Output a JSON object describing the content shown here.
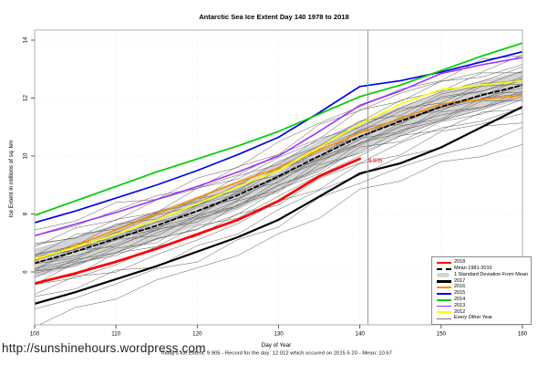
{
  "footer": {
    "link": "http://sunshinehours.wordpress.com",
    "caption": "Today's Ice Extent: 9.905  - Record for the day: 12.012 which occured on 2015 5 20  - Mean: 10.67"
  },
  "chart_data": {
    "type": "line",
    "title": "Antarctic Sea Ice Extent Day 140 1978 to 2018",
    "xlabel": "Day of Year",
    "ylabel": "Ice Extent in millions of sq. km",
    "xlim": [
      100,
      160
    ],
    "ylim": [
      4.2,
      14.35
    ],
    "xticks": [
      100,
      110,
      120,
      130,
      140,
      150,
      160
    ],
    "yticks": [
      6,
      8,
      10,
      12,
      14
    ],
    "grid": "light-dotted",
    "legend_position": "bottom-right",
    "x": [
      100,
      105,
      110,
      115,
      120,
      125,
      130,
      135,
      140,
      145,
      150,
      155,
      160
    ],
    "series": [
      {
        "name": "2016",
        "color": "#ff8c00",
        "width": 1.6,
        "values": [
          6.4,
          6.9,
          7.45,
          8.0,
          8.55,
          9.1,
          9.6,
          10.2,
          10.8,
          11.3,
          11.8,
          11.95,
          12.1
        ]
      },
      {
        "name": "2012",
        "color": "#ffff00",
        "width": 1.6,
        "values": [
          6.45,
          6.85,
          7.3,
          7.8,
          8.35,
          8.95,
          9.5,
          10.3,
          11.1,
          11.8,
          12.3,
          12.45,
          12.6
        ]
      },
      {
        "name": "2013",
        "color": "#9b30ff",
        "width": 1.6,
        "values": [
          7.25,
          7.65,
          8.05,
          8.5,
          8.95,
          9.45,
          10.0,
          10.85,
          11.75,
          12.25,
          12.85,
          13.15,
          13.4
        ]
      },
      {
        "name": "2015",
        "color": "#0000ee",
        "width": 1.7,
        "values": [
          7.7,
          8.1,
          8.55,
          9.0,
          9.5,
          10.05,
          10.65,
          11.5,
          12.4,
          12.6,
          12.9,
          13.25,
          13.6
        ]
      },
      {
        "name": "2014",
        "color": "#00cc00",
        "width": 1.7,
        "values": [
          7.95,
          8.45,
          8.95,
          9.45,
          9.9,
          10.35,
          10.85,
          11.45,
          12.05,
          12.45,
          12.95,
          13.45,
          13.9
        ]
      },
      {
        "name": "Mean 1981-2010",
        "color": "#000000",
        "width": 1.8,
        "dash": "4.5,3",
        "values": [
          6.3,
          6.7,
          7.15,
          7.6,
          8.1,
          8.65,
          9.3,
          10.0,
          10.67,
          11.2,
          11.7,
          12.1,
          12.45
        ]
      },
      {
        "name": "2017",
        "color": "#000000",
        "width": 2.2,
        "values": [
          4.9,
          5.3,
          5.75,
          6.2,
          6.7,
          7.2,
          7.8,
          8.6,
          9.4,
          9.75,
          10.3,
          11.0,
          11.7
        ]
      },
      {
        "name": "2018",
        "color": "#ff0000",
        "width": 2.8,
        "values": [
          5.6,
          5.95,
          6.35,
          6.8,
          7.3,
          7.8,
          8.45,
          9.3,
          9.905
        ]
      }
    ],
    "std_band": {
      "label": "1 Standard Deviation From Mean",
      "color": "#d4d4d4",
      "halfwidth": 0.5,
      "mean_ref": "Mean 1981-2010"
    },
    "background_years": {
      "label": "Every Other Year",
      "color": "#5a5a5a",
      "width": 0.5,
      "offsets": [
        -2.0,
        -1.6,
        -1.25,
        -1.0,
        -0.82,
        -0.66,
        -0.55,
        -0.47,
        -0.4,
        -0.34,
        -0.28,
        -0.22,
        -0.16,
        -0.1,
        -0.05,
        0.0,
        0.05,
        0.11,
        0.17,
        0.24,
        0.31,
        0.39,
        0.48,
        0.6,
        0.75,
        0.92,
        1.08
      ]
    },
    "marker": {
      "day": 141,
      "color": "#8c8c8c"
    },
    "annotation": {
      "text": "9.905",
      "day": 141.9,
      "value": 9.84,
      "color": "#ff0000"
    },
    "stats": {
      "todays_ice_extent": 9.905,
      "record_for_day": 12.012,
      "record_date": "2015 5 20",
      "mean": 10.67
    },
    "legend": [
      {
        "label": "2018",
        "swatch": "thick",
        "color": "#ff0000"
      },
      {
        "label": "Mean 1981-2010",
        "swatch": "dashed",
        "color": "#000000"
      },
      {
        "label": "1 Standard Deviation From Mean",
        "swatch": "band",
        "color": "#d4d4d4"
      },
      {
        "label": "2017",
        "swatch": "thick",
        "color": "#000000"
      },
      {
        "label": "2016",
        "swatch": "line",
        "color": "#ff8c00"
      },
      {
        "label": "2015",
        "swatch": "line",
        "color": "#0000ee"
      },
      {
        "label": "2014",
        "swatch": "line",
        "color": "#00cc00"
      },
      {
        "label": "2013",
        "swatch": "line",
        "color": "#9b30ff"
      },
      {
        "label": "2012",
        "swatch": "line",
        "color": "#ffff00"
      },
      {
        "label": "Every Other Year",
        "swatch": "thin",
        "color": "#777777"
      }
    ]
  }
}
